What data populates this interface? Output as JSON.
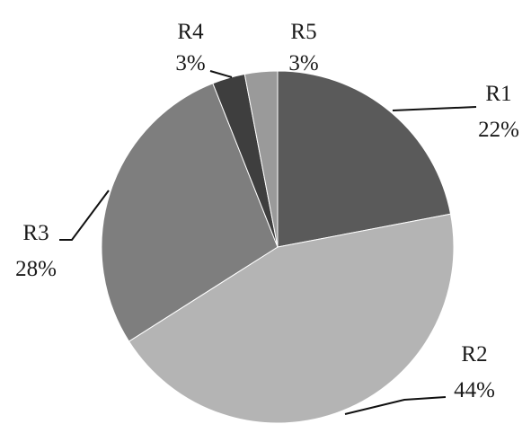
{
  "chart_data": {
    "type": "pie",
    "title": "",
    "start_angle_deg": 0,
    "direction": "clockwise",
    "slices": [
      {
        "name": "R1",
        "value": 22,
        "label": "22%",
        "color": "#5a5a5a"
      },
      {
        "name": "R2",
        "value": 44,
        "label": "44%",
        "color": "#b4b4b4"
      },
      {
        "name": "R3",
        "value": 28,
        "label": "28%",
        "color": "#7e7e7e"
      },
      {
        "name": "R4",
        "value": 3,
        "label": "3%",
        "color": "#3e3e3e"
      },
      {
        "name": "R5",
        "value": 3,
        "label": "3%",
        "color": "#9a9a9a"
      }
    ]
  }
}
